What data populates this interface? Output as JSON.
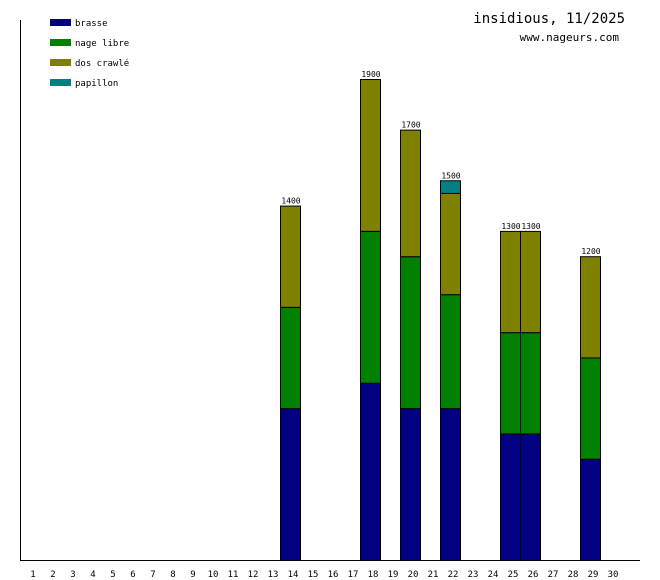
{
  "chart_data": {
    "type": "bar",
    "stacked": true,
    "title": "insidious, 11/2025",
    "subtitle": "www.nageurs.com",
    "xlabel": "",
    "ylabel": "",
    "ylim": [
      0,
      2100
    ],
    "legend_position": "top-left",
    "categories": [
      "1",
      "2",
      "3",
      "4",
      "5",
      "6",
      "7",
      "8",
      "9",
      "10",
      "11",
      "12",
      "13",
      "14",
      "15",
      "16",
      "17",
      "18",
      "19",
      "20",
      "21",
      "22",
      "23",
      "24",
      "25",
      "26",
      "27",
      "28",
      "29",
      "30"
    ],
    "series": [
      {
        "name": "brasse",
        "color": "#000080",
        "values": [
          0,
          0,
          0,
          0,
          0,
          0,
          0,
          0,
          0,
          0,
          0,
          0,
          0,
          600,
          0,
          0,
          0,
          700,
          0,
          600,
          0,
          600,
          0,
          0,
          500,
          500,
          0,
          0,
          400,
          0
        ]
      },
      {
        "name": "nage libre",
        "color": "#008000",
        "values": [
          0,
          0,
          0,
          0,
          0,
          0,
          0,
          0,
          0,
          0,
          0,
          0,
          0,
          400,
          0,
          0,
          0,
          600,
          0,
          600,
          0,
          450,
          0,
          0,
          400,
          400,
          0,
          0,
          400,
          0
        ]
      },
      {
        "name": "dos crawlé",
        "color": "#808000",
        "values": [
          0,
          0,
          0,
          0,
          0,
          0,
          0,
          0,
          0,
          0,
          0,
          0,
          0,
          400,
          0,
          0,
          0,
          600,
          0,
          500,
          0,
          400,
          0,
          0,
          400,
          400,
          0,
          0,
          400,
          0
        ]
      },
      {
        "name": "papillon",
        "color": "#008080",
        "values": [
          0,
          0,
          0,
          0,
          0,
          0,
          0,
          0,
          0,
          0,
          0,
          0,
          0,
          0,
          0,
          0,
          0,
          0,
          0,
          0,
          0,
          50,
          0,
          0,
          0,
          0,
          0,
          0,
          0,
          0
        ]
      }
    ],
    "totals": [
      "",
      "",
      "",
      "",
      "",
      "",
      "",
      "",
      "",
      "",
      "",
      "",
      "",
      "1400",
      "",
      "",
      "",
      "1900",
      "",
      "1700",
      "",
      "1500",
      "",
      "",
      "1300",
      "1300",
      "",
      "",
      "1200",
      ""
    ]
  }
}
